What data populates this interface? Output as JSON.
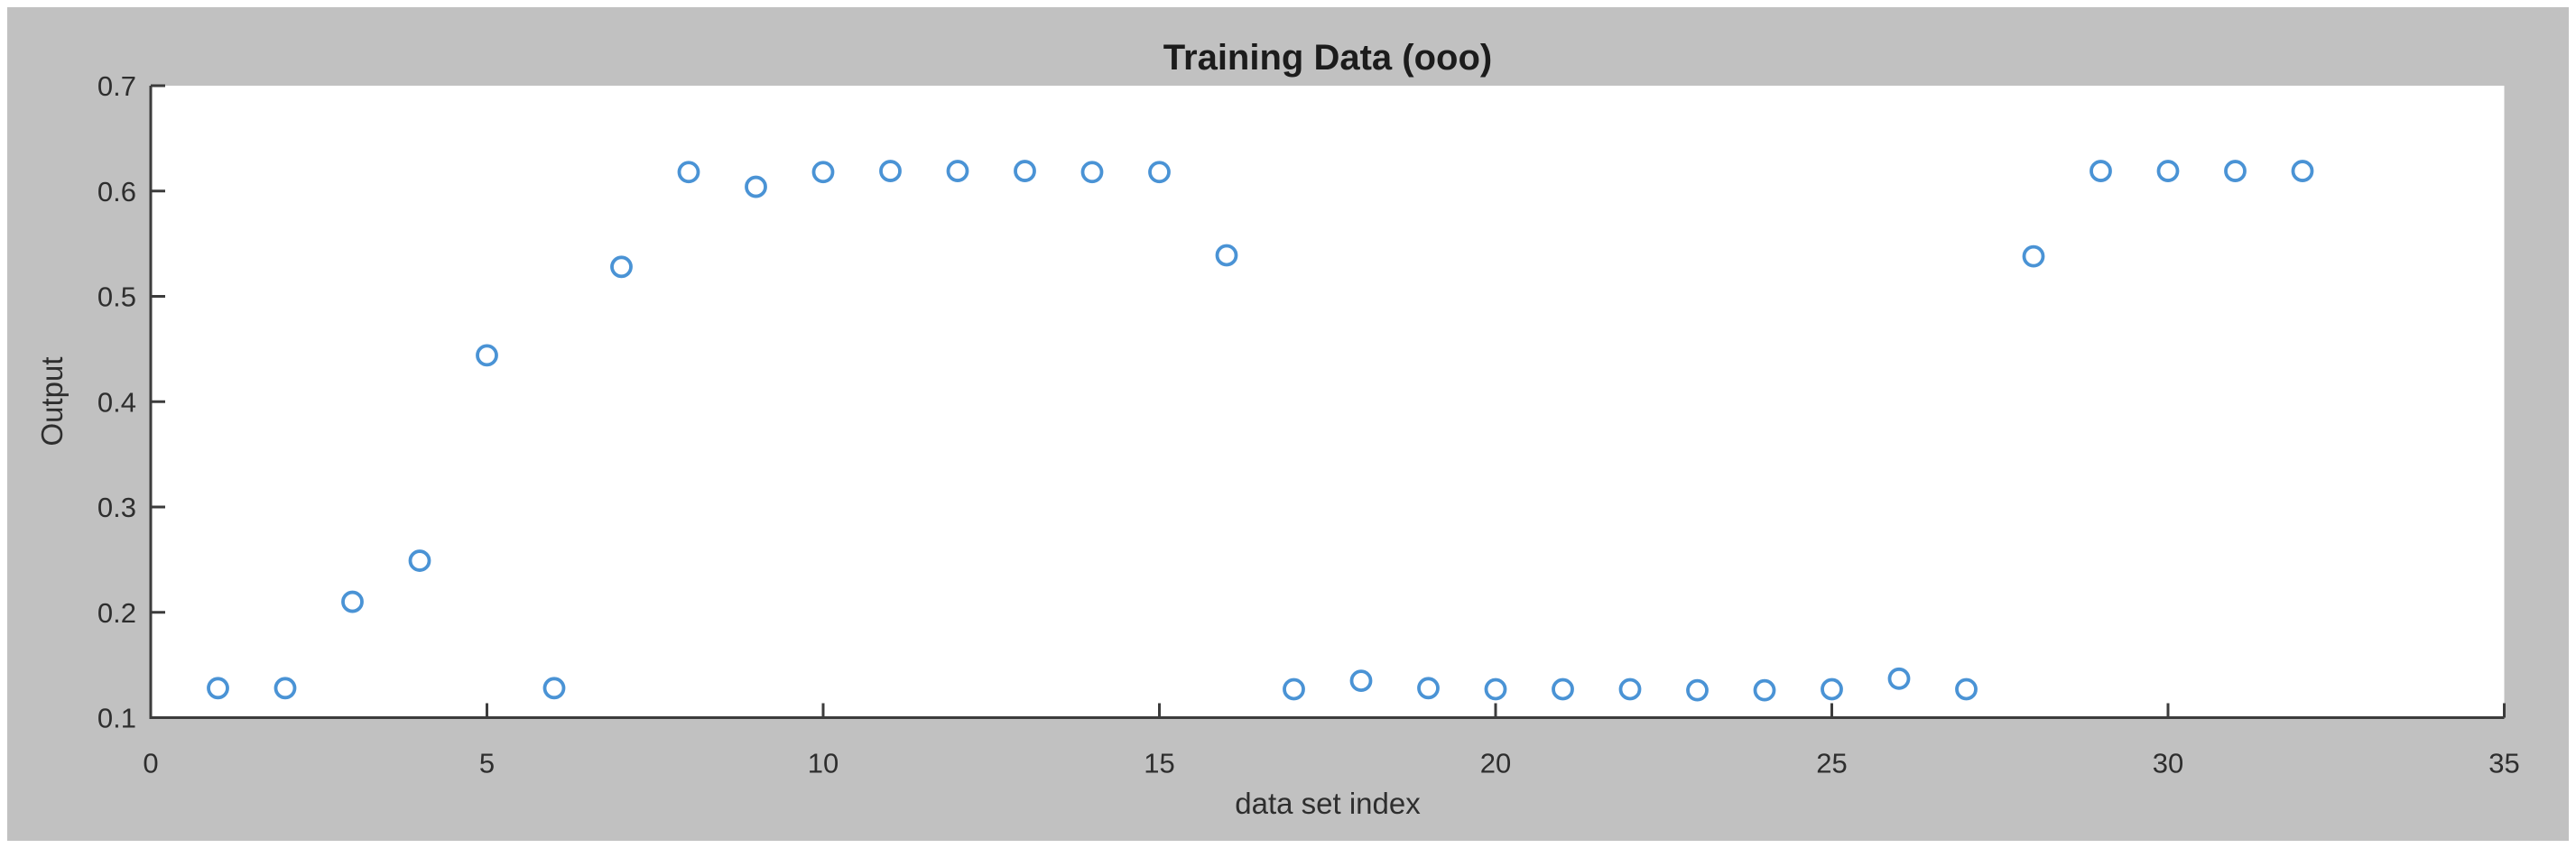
{
  "window": {
    "page_background": "#ffffff",
    "figure_background": "#c1c1c1"
  },
  "chart_data": {
    "type": "scatter",
    "title": "Training Data (ooo)",
    "xlabel": "data set index",
    "ylabel": "Output",
    "xlim": [
      0,
      35
    ],
    "ylim": [
      0.1,
      0.7
    ],
    "xtick_labels": [
      "0",
      "5",
      "10",
      "15",
      "20",
      "25",
      "30",
      "35"
    ],
    "ytick_labels": [
      "0.1",
      "0.2",
      "0.3",
      "0.4",
      "0.5",
      "0.6",
      "0.7"
    ],
    "grid": false,
    "legend_position": "none",
    "box": "off",
    "tick_direction": "in",
    "marker_style": "open-circle",
    "marker_color": "#4a93d5",
    "axis_color": "#3c3c3c",
    "tick_label_color": "#2e2e2e",
    "series": [
      {
        "name": "Training Data",
        "x": [
          1,
          2,
          3,
          4,
          5,
          6,
          7,
          8,
          9,
          10,
          11,
          12,
          13,
          14,
          15,
          16,
          17,
          18,
          19,
          20,
          21,
          22,
          23,
          24,
          25,
          26,
          27,
          28,
          29,
          30,
          31,
          32
        ],
        "y": [
          0.128,
          0.128,
          0.21,
          0.249,
          0.444,
          0.128,
          0.528,
          0.618,
          0.604,
          0.618,
          0.619,
          0.619,
          0.619,
          0.618,
          0.618,
          0.539,
          0.127,
          0.135,
          0.128,
          0.127,
          0.127,
          0.127,
          0.126,
          0.126,
          0.127,
          0.137,
          0.127,
          0.538,
          0.619,
          0.619,
          0.619,
          0.619
        ]
      }
    ]
  }
}
